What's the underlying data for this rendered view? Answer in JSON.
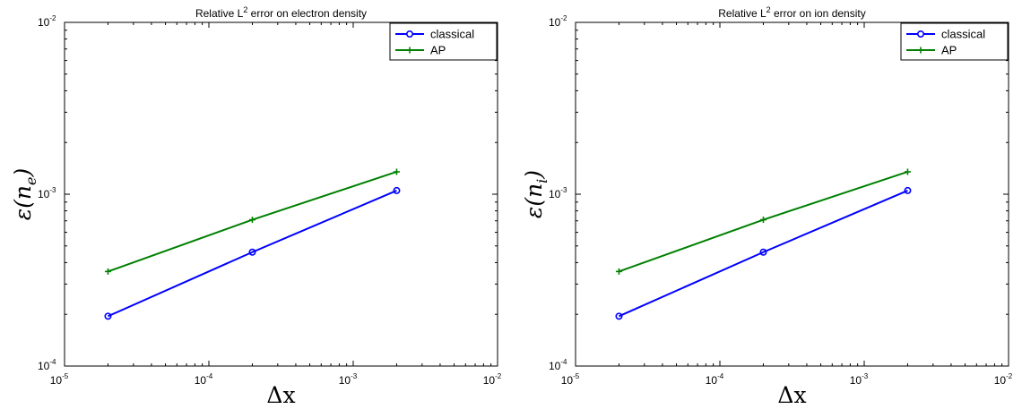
{
  "chart_data": [
    {
      "type": "line",
      "title_main": "Relative L",
      "title_sup": "2",
      "title_rest": " error on electron density",
      "xlabel": "Δx",
      "ylabel_main": "ε(n",
      "ylabel_sub": "e",
      "ylabel_end": ")",
      "x_scale": "log",
      "y_scale": "log",
      "xlim": [
        1e-05,
        0.01
      ],
      "ylim": [
        0.0001,
        0.01
      ],
      "x_ticks": [
        {
          "base": "10",
          "exp": "-5"
        },
        {
          "base": "10",
          "exp": "-4"
        },
        {
          "base": "10",
          "exp": "-3"
        },
        {
          "base": "10",
          "exp": "-2"
        }
      ],
      "y_ticks": [
        {
          "base": "10",
          "exp": "-4"
        },
        {
          "base": "10",
          "exp": "-3"
        },
        {
          "base": "10",
          "exp": "-2"
        }
      ],
      "legend_position": "top-right",
      "series": [
        {
          "name": "classical",
          "color": "#0000ff",
          "marker": "circle",
          "x": [
            2e-05,
            0.0002,
            0.002
          ],
          "y": [
            0.000195,
            0.00046,
            0.00105
          ]
        },
        {
          "name": "AP",
          "color": "#008000",
          "marker": "plus",
          "x": [
            2e-05,
            0.0002,
            0.002
          ],
          "y": [
            0.000355,
            0.00071,
            0.00135
          ]
        }
      ]
    },
    {
      "type": "line",
      "title_main": "Relative L",
      "title_sup": "2",
      "title_rest": " error on ion density",
      "xlabel": "Δx",
      "ylabel_main": "ε(n",
      "ylabel_sub": "i",
      "ylabel_end": ")",
      "x_scale": "log",
      "y_scale": "log",
      "xlim": [
        1e-05,
        0.01
      ],
      "ylim": [
        0.0001,
        0.01
      ],
      "x_ticks": [
        {
          "base": "10",
          "exp": "-5"
        },
        {
          "base": "10",
          "exp": "-4"
        },
        {
          "base": "10",
          "exp": "-3"
        },
        {
          "base": "10",
          "exp": "-2"
        }
      ],
      "y_ticks": [
        {
          "base": "10",
          "exp": "-4"
        },
        {
          "base": "10",
          "exp": "-3"
        },
        {
          "base": "10",
          "exp": "-2"
        }
      ],
      "legend_position": "top-right",
      "series": [
        {
          "name": "classical",
          "color": "#0000ff",
          "marker": "circle",
          "x": [
            2e-05,
            0.0002,
            0.002
          ],
          "y": [
            0.000195,
            0.00046,
            0.00105
          ]
        },
        {
          "name": "AP",
          "color": "#008000",
          "marker": "plus",
          "x": [
            2e-05,
            0.0002,
            0.002
          ],
          "y": [
            0.000355,
            0.00071,
            0.00135
          ]
        }
      ]
    }
  ]
}
